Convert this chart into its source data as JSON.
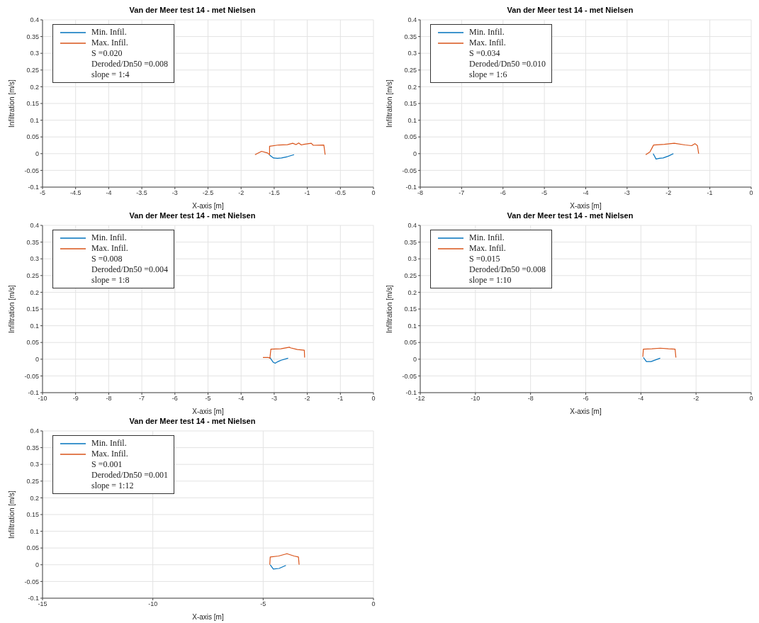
{
  "chart_data": [
    {
      "type": "line",
      "title": "Van der Meer test 14 - met Nielsen",
      "xlabel": "X-axis [m]",
      "ylabel": "Infiltration [m/s]",
      "xlim": [
        -5,
        0
      ],
      "xticks": [
        -5,
        -4.5,
        -4,
        -3.5,
        -3,
        -2.5,
        -2,
        -1.5,
        -1,
        -0.5,
        0
      ],
      "ylim": [
        -0.1,
        0.4
      ],
      "yticks": [
        -0.1,
        -0.05,
        0,
        0.05,
        0.1,
        0.15,
        0.2,
        0.25,
        0.3,
        0.35,
        0.4
      ],
      "grid": true,
      "legend": "top left",
      "annotations": [
        "S =0.020",
        "Deroded/Dn50 =0.008",
        "slope = 1:4"
      ],
      "series": [
        {
          "name": "Min. Infil.",
          "color": "#0072bd",
          "x": [
            -1.57,
            -1.51,
            -1.45,
            -1.39,
            -1.3,
            -1.2
          ],
          "values": [
            -0.004,
            -0.013,
            -0.014,
            -0.013,
            -0.009,
            -0.003
          ]
        },
        {
          "name": "Max. Infil.",
          "color": "#d95319",
          "x": [
            -1.79,
            -1.69,
            -1.6,
            -1.57,
            -1.57,
            -1.43,
            -1.3,
            -1.22,
            -1.17,
            -1.13,
            -1.09,
            -1.05,
            -0.94,
            -0.91,
            -0.75,
            -0.73
          ],
          "values": [
            -0.003,
            0.007,
            0.002,
            -0.003,
            0.022,
            0.026,
            0.027,
            0.031,
            0.027,
            0.032,
            0.026,
            0.028,
            0.031,
            0.025,
            0.026,
            -0.003
          ]
        }
      ]
    },
    {
      "type": "line",
      "title": "Van der Meer test 14 - met Nielsen",
      "xlabel": "X-axis [m]",
      "ylabel": "Infiltration [m/s]",
      "xlim": [
        -8,
        0
      ],
      "xticks": [
        -8,
        -7,
        -6,
        -5,
        -4,
        -3,
        -2,
        -1,
        0
      ],
      "ylim": [
        -0.1,
        0.4
      ],
      "yticks": [
        -0.1,
        -0.05,
        0,
        0.05,
        0.1,
        0.15,
        0.2,
        0.25,
        0.3,
        0.35,
        0.4
      ],
      "grid": true,
      "legend": "top left",
      "annotations": [
        "S =0.034",
        "Deroded/Dn50 =0.010",
        "slope = 1:6"
      ],
      "series": [
        {
          "name": "Min. Infil.",
          "color": "#0072bd",
          "x": [
            -2.37,
            -2.3,
            -2.22,
            -2.13,
            -2.0,
            -1.88
          ],
          "values": [
            0,
            -0.016,
            -0.014,
            -0.013,
            -0.007,
            0
          ]
        },
        {
          "name": "Max. Infil.",
          "color": "#d95319",
          "x": [
            -2.55,
            -2.45,
            -2.38,
            -2.36,
            -2.1,
            -1.86,
            -1.6,
            -1.44,
            -1.36,
            -1.3,
            -1.27
          ],
          "values": [
            -0.003,
            0.005,
            0.021,
            0.026,
            0.028,
            0.031,
            0.026,
            0.024,
            0.03,
            0.024,
            0
          ]
        }
      ]
    },
    {
      "type": "line",
      "title": "Van der Meer test 14 - met Nielsen",
      "xlabel": "X-axis [m]",
      "ylabel": "Infiltration [m/s]",
      "xlim": [
        -10,
        0
      ],
      "xticks": [
        -10,
        -9,
        -8,
        -7,
        -6,
        -5,
        -4,
        -3,
        -2,
        -1,
        0
      ],
      "ylim": [
        -0.1,
        0.4
      ],
      "yticks": [
        -0.1,
        -0.05,
        0,
        0.05,
        0.1,
        0.15,
        0.2,
        0.25,
        0.3,
        0.35,
        0.4
      ],
      "grid": true,
      "legend": "top left",
      "annotations": [
        "S =0.008",
        "Deroded/Dn50 =0.004",
        "slope = 1:8"
      ],
      "series": [
        {
          "name": "Min. Infil.",
          "color": "#0072bd",
          "x": [
            -3.13,
            -3.03,
            -2.97,
            -2.92,
            -2.86,
            -2.79,
            -2.58
          ],
          "values": [
            0.005,
            -0.009,
            -0.012,
            -0.009,
            -0.006,
            -0.003,
            0.003
          ]
        },
        {
          "name": "Max. Infil.",
          "color": "#d95319",
          "x": [
            -3.34,
            -3.17,
            -3.13,
            -3.1,
            -2.8,
            -2.54,
            -2.51,
            -2.3,
            -2.09,
            -2.08
          ],
          "values": [
            0.005,
            0.005,
            0.003,
            0.03,
            0.031,
            0.036,
            0.034,
            0.029,
            0.027,
            0.005
          ]
        }
      ]
    },
    {
      "type": "line",
      "title": "Van der Meer test 14 - met Nielsen",
      "xlabel": "X-axis [m]",
      "ylabel": "Infiltration [m/s]",
      "xlim": [
        -12,
        0
      ],
      "xticks": [
        -12,
        -10,
        -8,
        -6,
        -4,
        -2,
        0
      ],
      "ylim": [
        -0.1,
        0.4
      ],
      "yticks": [
        -0.1,
        -0.05,
        0,
        0.05,
        0.1,
        0.15,
        0.2,
        0.25,
        0.3,
        0.35,
        0.4
      ],
      "grid": true,
      "legend": "top left",
      "annotations": [
        "S =0.015",
        "Deroded/Dn50 =0.008",
        "slope = 1:10"
      ],
      "series": [
        {
          "name": "Min. Infil.",
          "color": "#0072bd",
          "x": [
            -3.91,
            -3.8,
            -3.63,
            -3.3
          ],
          "values": [
            0.005,
            -0.007,
            -0.007,
            0.003
          ]
        },
        {
          "name": "Max. Infil.",
          "color": "#d95319",
          "x": [
            -3.93,
            -3.91,
            -3.6,
            -3.3,
            -3.0,
            -2.76,
            -2.73
          ],
          "values": [
            0.007,
            0.03,
            0.031,
            0.033,
            0.031,
            0.03,
            0.005
          ]
        }
      ]
    },
    {
      "type": "line",
      "title": "Van der Meer test 14 - met Nielsen",
      "xlabel": "X-axis [m]",
      "ylabel": "Infiltration [m/s]",
      "xlim": [
        -15,
        0
      ],
      "xticks": [
        -15,
        -10,
        -5,
        0
      ],
      "ylim": [
        -0.1,
        0.4
      ],
      "yticks": [
        -0.1,
        -0.05,
        0,
        0.05,
        0.1,
        0.15,
        0.2,
        0.25,
        0.3,
        0.35,
        0.4
      ],
      "grid": true,
      "legend": "top left",
      "annotations": [
        "S =0.001",
        "Deroded/Dn50 =0.001",
        "slope = 1:12"
      ],
      "series": [
        {
          "name": "Min. Infil.",
          "color": "#0072bd",
          "x": [
            -4.68,
            -4.54,
            -4.28,
            -3.97
          ],
          "values": [
            0,
            -0.013,
            -0.011,
            -0.002
          ]
        },
        {
          "name": "Max. Infil.",
          "color": "#d95319",
          "x": [
            -4.7,
            -4.68,
            -4.3,
            -3.92,
            -3.6,
            -3.4,
            -3.37
          ],
          "values": [
            0,
            0.023,
            0.026,
            0.033,
            0.026,
            0.023,
            0
          ]
        }
      ]
    }
  ]
}
